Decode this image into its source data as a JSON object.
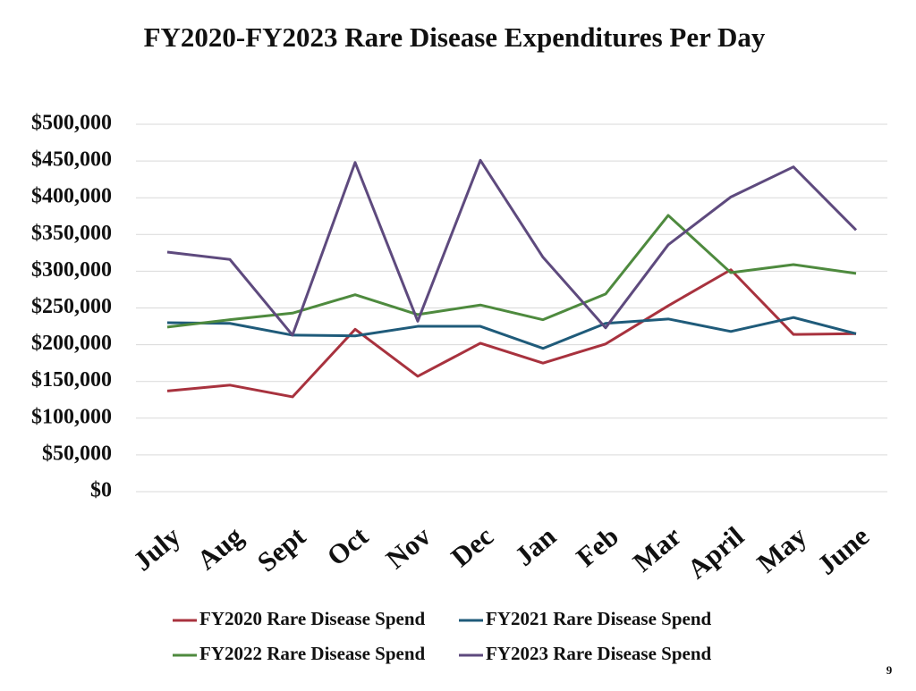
{
  "chart_data": {
    "type": "line",
    "title": "FY2020-FY2023 Rare Disease Expenditures Per Day",
    "categories": [
      "July",
      "Aug",
      "Sept",
      "Oct",
      "Nov",
      "Dec",
      "Jan",
      "Feb",
      "Mar",
      "April",
      "May",
      "June"
    ],
    "series": [
      {
        "name": "FY2020 Rare Disease Spend",
        "color": "#a8323e",
        "values": [
          137000,
          145000,
          129000,
          221000,
          157000,
          202000,
          175000,
          201000,
          253000,
          302000,
          214000,
          215000
        ]
      },
      {
        "name": "FY2021 Rare Disease Spend",
        "color": "#1f5b7a",
        "values": [
          230000,
          229000,
          213000,
          212000,
          225000,
          225000,
          195000,
          229000,
          235000,
          218000,
          237000,
          215000
        ]
      },
      {
        "name": "FY2022 Rare Disease Spend",
        "color": "#4e8a3e",
        "values": [
          224000,
          234000,
          243000,
          268000,
          241000,
          254000,
          234000,
          269000,
          376000,
          298000,
          309000,
          297000
        ]
      },
      {
        "name": "FY2023 Rare Disease Spend",
        "color": "#5e4a7e",
        "values": [
          326000,
          316000,
          213000,
          448000,
          232000,
          451000,
          319000,
          223000,
          336000,
          401000,
          442000,
          356000
        ]
      }
    ],
    "ylim": [
      0,
      500000
    ],
    "yticks": [
      {
        "value": 0,
        "label": "$0"
      },
      {
        "value": 50000,
        "label": "$50,000"
      },
      {
        "value": 100000,
        "label": "$100,000"
      },
      {
        "value": 150000,
        "label": "$150,000"
      },
      {
        "value": 200000,
        "label": "$200,000"
      },
      {
        "value": 250000,
        "label": "$250,000"
      },
      {
        "value": 300000,
        "label": "$300,000"
      },
      {
        "value": 350000,
        "label": "$350,000"
      },
      {
        "value": 400000,
        "label": "$400,000"
      },
      {
        "value": 450000,
        "label": "$450,000"
      },
      {
        "value": 500000,
        "label": "$500,000"
      }
    ],
    "grid": true,
    "legend": "bottom"
  },
  "slide_number": "9"
}
